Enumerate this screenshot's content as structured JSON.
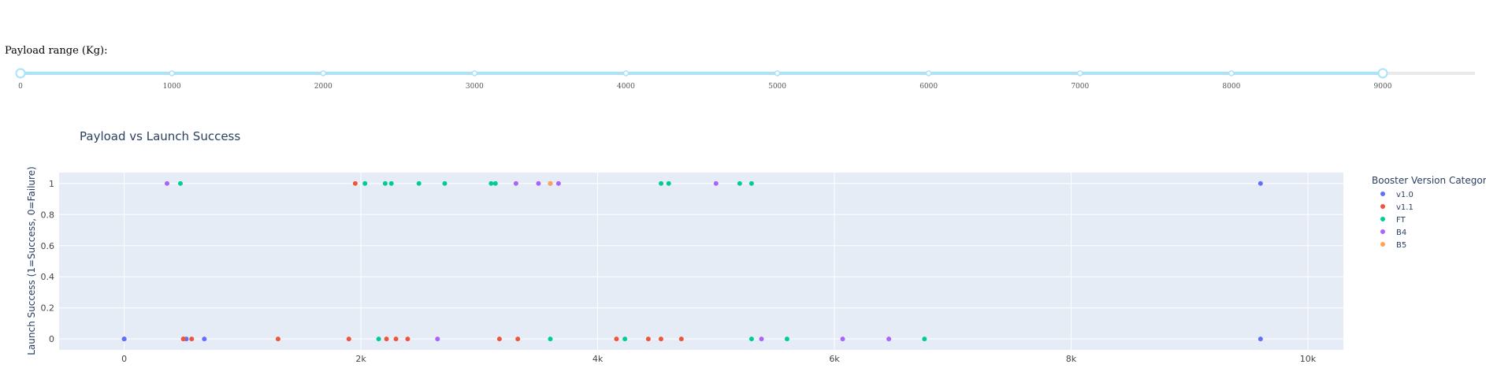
{
  "slider": {
    "label": "Payload range (Kg):",
    "min": 0,
    "max": 9000,
    "selected": [
      0,
      9000
    ],
    "marks": [
      "0",
      "1000",
      "2000",
      "3000",
      "4000",
      "5000",
      "6000",
      "7000",
      "8000",
      "9000"
    ]
  },
  "chart_data": {
    "type": "scatter",
    "title": "Payload vs Launch Success",
    "xlabel": "",
    "ylabel": "Launch Success (1=Success, 0=Failure)",
    "xlim": [
      -550,
      10300
    ],
    "ylim": [
      -0.07,
      1.07
    ],
    "xticks": [
      0,
      2000,
      4000,
      6000,
      8000,
      10000
    ],
    "xtick_labels": [
      "0",
      "2k",
      "4k",
      "6k",
      "8k",
      "10k"
    ],
    "yticks": [
      0,
      0.2,
      0.4,
      0.6,
      0.8,
      1
    ],
    "ytick_labels": [
      "0",
      "0.2",
      "0.4",
      "0.6",
      "0.8",
      "1"
    ],
    "grid": true,
    "legend_title": "Booster Version Category",
    "legend_position": "right",
    "series": [
      {
        "name": "v1.0",
        "color": "#636efa",
        "points": [
          [
            0,
            0
          ],
          [
            0,
            0
          ],
          [
            525,
            0
          ],
          [
            677,
            0
          ],
          [
            9600,
            1
          ],
          [
            9600,
            0
          ]
        ]
      },
      {
        "name": "v1.1",
        "color": "#ef553b",
        "points": [
          [
            500,
            0
          ],
          [
            500,
            0
          ],
          [
            570,
            0
          ],
          [
            1300,
            0
          ],
          [
            1898,
            0
          ],
          [
            1952,
            1
          ],
          [
            2216,
            0
          ],
          [
            2296,
            0
          ],
          [
            2395,
            0
          ],
          [
            3170,
            0
          ],
          [
            3325,
            0
          ],
          [
            4159,
            0
          ],
          [
            4428,
            0
          ],
          [
            4535,
            0
          ],
          [
            4707,
            0
          ]
        ]
      },
      {
        "name": "FT",
        "color": "#00cc96",
        "points": [
          [
            475,
            1
          ],
          [
            2034,
            1
          ],
          [
            2205,
            1
          ],
          [
            2257,
            1
          ],
          [
            2490,
            1
          ],
          [
            2708,
            1
          ],
          [
            3100,
            1
          ],
          [
            3136,
            1
          ],
          [
            3600,
            1
          ],
          [
            4536,
            1
          ],
          [
            4600,
            1
          ],
          [
            5200,
            1
          ],
          [
            5300,
            1
          ],
          [
            2150,
            0
          ],
          [
            3600,
            0
          ],
          [
            4230,
            0
          ],
          [
            5300,
            0
          ],
          [
            5600,
            0
          ],
          [
            6761,
            0
          ]
        ]
      },
      {
        "name": "B4",
        "color": "#ab63fa",
        "points": [
          [
            362,
            1
          ],
          [
            3310,
            1
          ],
          [
            3500,
            1
          ],
          [
            3669,
            1
          ],
          [
            5000,
            1
          ],
          [
            2647,
            0
          ],
          [
            5384,
            0
          ],
          [
            6070,
            0
          ],
          [
            6460,
            0
          ]
        ]
      },
      {
        "name": "B5",
        "color": "#ffa15a",
        "points": [
          [
            3600,
            1
          ]
        ]
      }
    ]
  }
}
